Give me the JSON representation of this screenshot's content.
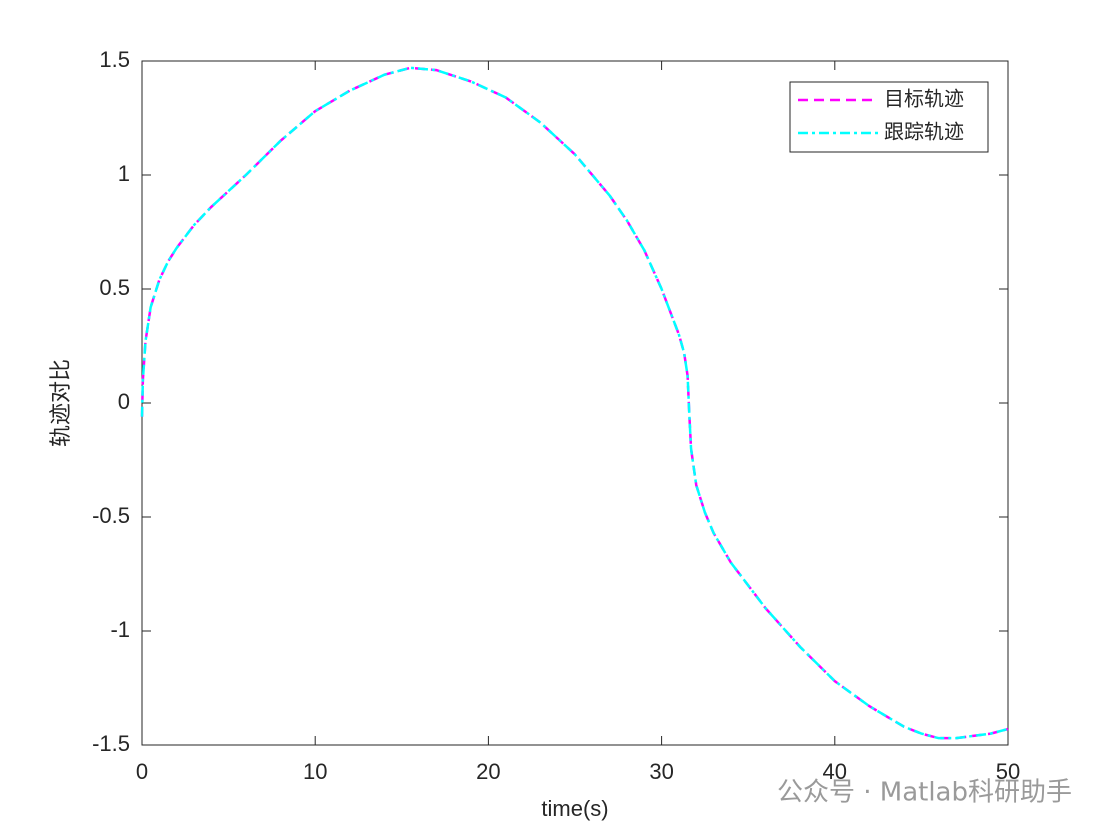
{
  "chart_data": {
    "type": "line",
    "xlabel": "time(s)",
    "ylabel": "轨迹对比",
    "x": [
      0,
      0.05,
      0.2,
      0.5,
      1,
      1.5,
      2,
      3,
      4,
      5,
      6,
      8,
      10,
      12,
      14,
      15.5,
      17,
      19,
      21,
      23,
      25,
      27,
      28,
      29,
      30,
      30.5,
      31,
      31.3,
      31.5,
      31.6,
      31.7,
      32,
      32.5,
      33,
      34,
      35,
      36,
      38,
      40,
      42,
      44,
      45,
      46,
      47,
      48,
      49,
      50
    ],
    "series": [
      {
        "name": "目标轨迹",
        "color": "#ff00ff",
        "dash": "10 6",
        "values": [
          -0.06,
          0.1,
          0.27,
          0.42,
          0.54,
          0.62,
          0.68,
          0.78,
          0.86,
          0.93,
          1.0,
          1.15,
          1.28,
          1.37,
          1.44,
          1.47,
          1.46,
          1.41,
          1.34,
          1.23,
          1.09,
          0.91,
          0.8,
          0.67,
          0.5,
          0.4,
          0.3,
          0.22,
          0.12,
          -0.05,
          -0.2,
          -0.36,
          -0.48,
          -0.57,
          -0.7,
          -0.8,
          -0.9,
          -1.07,
          -1.22,
          -1.33,
          -1.42,
          -1.45,
          -1.47,
          -1.47,
          -1.46,
          -1.45,
          -1.43
        ]
      },
      {
        "name": "跟踪轨迹",
        "color": "#00ffff",
        "dash": "10 4 3 4",
        "values": [
          -0.06,
          0.1,
          0.27,
          0.42,
          0.54,
          0.62,
          0.68,
          0.78,
          0.86,
          0.93,
          1.0,
          1.15,
          1.28,
          1.37,
          1.44,
          1.47,
          1.46,
          1.41,
          1.34,
          1.23,
          1.09,
          0.91,
          0.8,
          0.67,
          0.5,
          0.4,
          0.3,
          0.22,
          0.12,
          -0.05,
          -0.2,
          -0.36,
          -0.48,
          -0.57,
          -0.7,
          -0.8,
          -0.9,
          -1.07,
          -1.22,
          -1.33,
          -1.42,
          -1.45,
          -1.47,
          -1.47,
          -1.46,
          -1.45,
          -1.43
        ]
      }
    ],
    "xlim": [
      0,
      50
    ],
    "xticks": [
      0,
      10,
      20,
      30,
      40,
      50
    ],
    "ylim": [
      -1.5,
      1.5
    ],
    "yticks": [
      -1.5,
      -1,
      -0.5,
      0,
      0.5,
      1,
      1.5
    ],
    "legend": "top-right",
    "grid": false,
    "watermark": "公众号 · Matlab科研助手"
  }
}
